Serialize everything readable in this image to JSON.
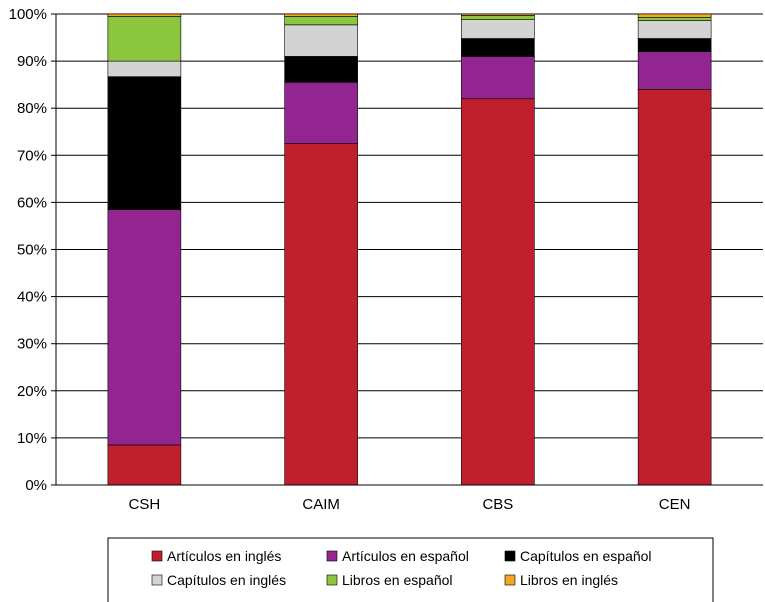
{
  "chart_data": {
    "type": "bar",
    "stacked": true,
    "normalized": true,
    "title": "",
    "xlabel": "",
    "ylabel": "",
    "categories": [
      "CSH",
      "CAIM",
      "CBS",
      "CEN"
    ],
    "series": [
      {
        "name": "Artículos en inglés",
        "color": "#c01f2e",
        "values": [
          8.5,
          72.5,
          82.0,
          84.0
        ]
      },
      {
        "name": "Artículos en español",
        "color": "#922590",
        "values": [
          50.0,
          13.0,
          9.0,
          8.0
        ]
      },
      {
        "name": "Capítulos en español",
        "color": "#000000",
        "values": [
          28.2,
          5.5,
          3.8,
          2.8
        ]
      },
      {
        "name": "Capítulos en inglés",
        "color": "#d3d3d3",
        "values": [
          3.3,
          6.7,
          4.0,
          3.8
        ]
      },
      {
        "name": "Libros en español",
        "color": "#8cc63f",
        "values": [
          9.5,
          1.8,
          0.9,
          0.7
        ]
      },
      {
        "name": "Libros en inglés",
        "color": "#f5a623",
        "values": [
          0.5,
          0.5,
          0.3,
          0.7
        ]
      }
    ],
    "ylim": [
      0,
      100
    ],
    "yticks": [
      "0%",
      "10%",
      "20%",
      "30%",
      "40%",
      "50%",
      "60%",
      "70%",
      "80%",
      "90%",
      "100%"
    ],
    "grid": true,
    "legend_position": "bottom",
    "legend_order": [
      "Artículos en inglés",
      "Artículos en español",
      "Capítulos en español",
      "Capítulos en inglés",
      "Libros en español",
      "Libros en inglés"
    ]
  }
}
